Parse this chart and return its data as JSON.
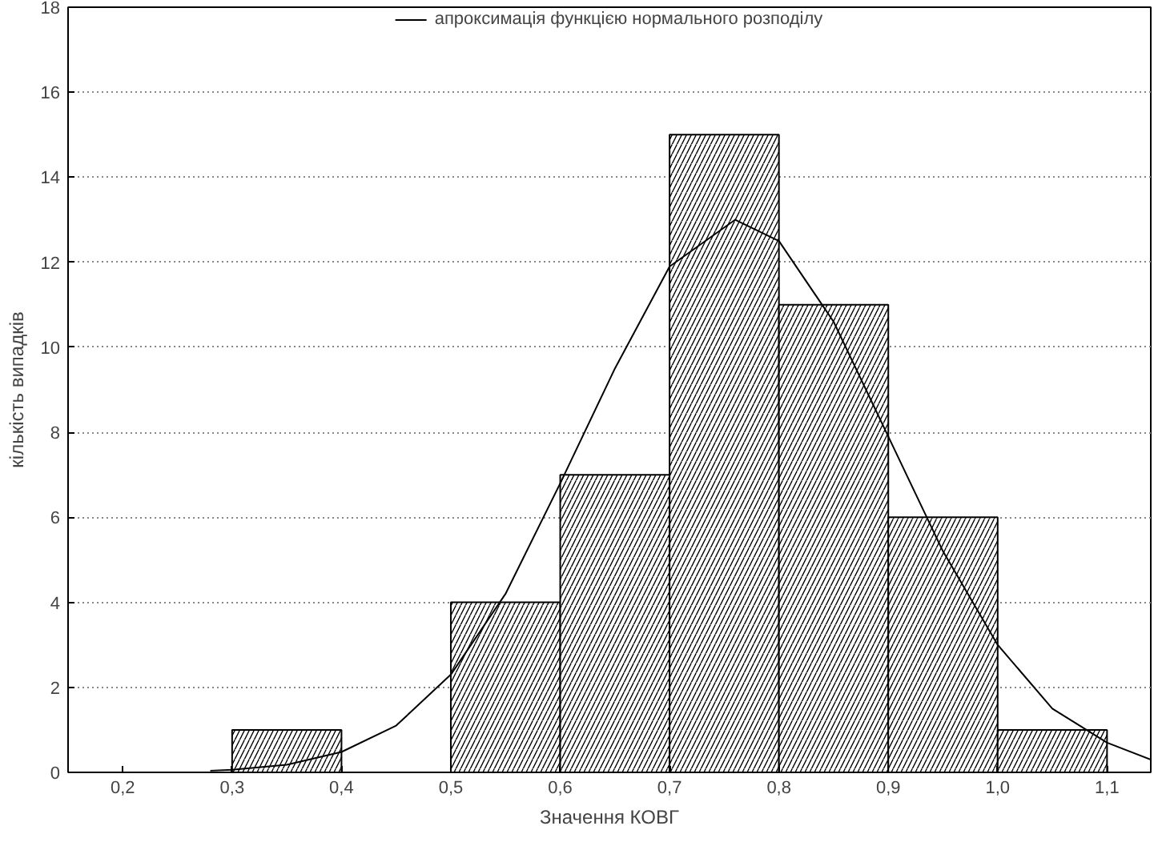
{
  "chart_data": {
    "type": "histogram",
    "xlabel": "Значення КОВГ",
    "ylabel": "кількість випадків",
    "bins": [
      0.3,
      0.4,
      0.5,
      0.6,
      0.7,
      0.8,
      0.9,
      1.0,
      1.1
    ],
    "values": [
      1,
      0,
      4,
      7,
      15,
      11,
      6,
      1
    ],
    "color": "#ffffff",
    "series": [
      {
        "type": "line",
        "name": "апроксимація функцією нормального розподілу",
        "color": "#000000",
        "x": [
          0.28,
          0.3,
          0.35,
          0.4,
          0.45,
          0.5,
          0.55,
          0.6,
          0.65,
          0.7,
          0.76,
          0.8,
          0.85,
          0.9,
          0.95,
          1.0,
          1.05,
          1.1,
          1.14
        ],
        "values": [
          0.04,
          0.06,
          0.18,
          0.48,
          1.1,
          2.3,
          4.2,
          6.8,
          9.5,
          11.9,
          13,
          12.5,
          10.6,
          7.9,
          5.2,
          3.0,
          1.5,
          0.7,
          0.3
        ]
      }
    ],
    "xlim": [
      0.15,
      1.14
    ],
    "ylim": [
      0,
      18
    ],
    "xticks": [
      {
        "value": 0.2,
        "label": "0,2"
      },
      {
        "value": 0.3,
        "label": "0,3"
      },
      {
        "value": 0.4,
        "label": "0,4"
      },
      {
        "value": 0.5,
        "label": "0,5"
      },
      {
        "value": 0.6,
        "label": "0,6"
      },
      {
        "value": 0.7,
        "label": "0,7"
      },
      {
        "value": 0.8,
        "label": "0,8"
      },
      {
        "value": 0.9,
        "label": "0,9"
      },
      {
        "value": 1.0,
        "label": "1,0"
      },
      {
        "value": 1.1,
        "label": "1,1"
      }
    ],
    "yticks": [
      0,
      2,
      4,
      6,
      8,
      10,
      12,
      14,
      16,
      18
    ],
    "grid": "y",
    "legend": "top"
  }
}
